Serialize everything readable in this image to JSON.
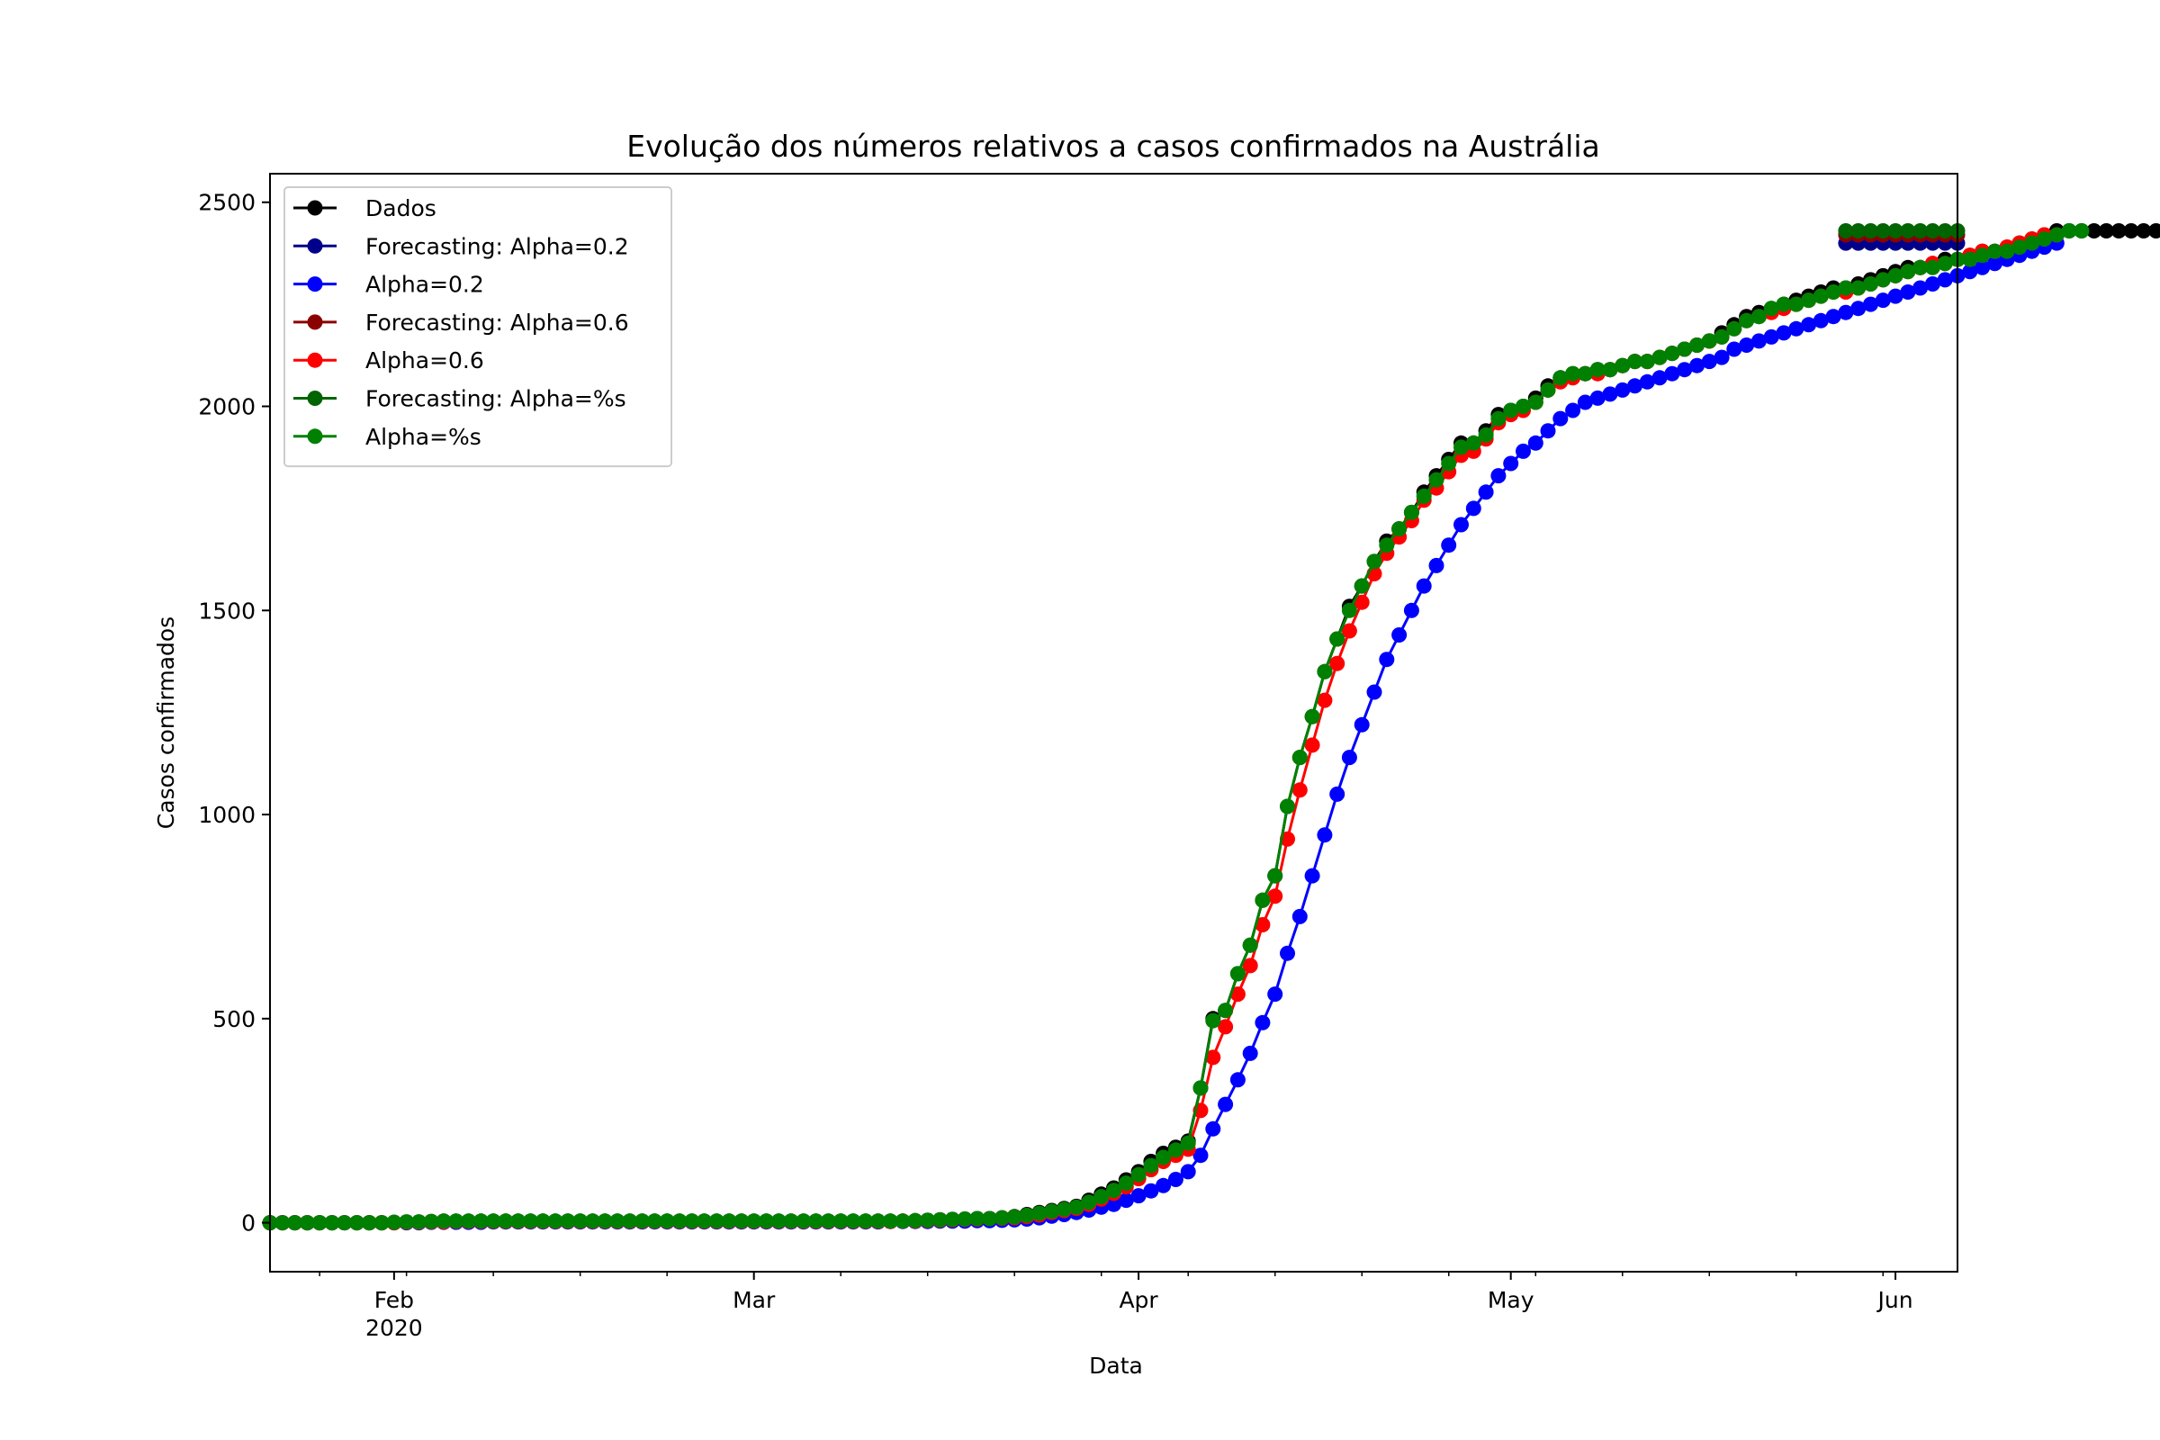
{
  "chart_data": {
    "type": "line",
    "title": "Evolução dos números relativos a casos confirmados na Austrália",
    "xlabel": "Data",
    "ylabel": "Casos confirmados",
    "x_range": [
      "2020-01-22",
      "2020-06-06"
    ],
    "ylim": [
      -120,
      2570
    ],
    "yticks": [
      0,
      500,
      1000,
      1500,
      2000,
      2500
    ],
    "xtick_labels": [
      {
        "date": "2020-02-01",
        "label": "Feb",
        "sublabel": "2020"
      },
      {
        "date": "2020-03-01",
        "label": "Mar",
        "sublabel": ""
      },
      {
        "date": "2020-04-01",
        "label": "Apr",
        "sublabel": ""
      },
      {
        "date": "2020-05-01",
        "label": "May",
        "sublabel": ""
      },
      {
        "date": "2020-06-01",
        "label": "Jun",
        "sublabel": ""
      }
    ],
    "grid": false,
    "legend_position": "upper-left",
    "series": [
      {
        "name": "Dados",
        "color": "#000000",
        "start_date": "2020-01-22",
        "values": [
          0,
          0,
          0,
          0,
          0,
          0,
          0,
          0,
          0,
          0,
          1,
          2,
          2,
          3,
          4,
          4,
          4,
          4,
          4,
          4,
          4,
          4,
          4,
          4,
          4,
          4,
          4,
          4,
          4,
          4,
          4,
          4,
          4,
          4,
          4,
          4,
          4,
          4,
          4,
          4,
          4,
          4,
          4,
          4,
          4,
          4,
          4,
          4,
          4,
          4,
          4,
          4,
          5,
          6,
          7,
          8,
          9,
          10,
          10,
          12,
          15,
          20,
          25,
          30,
          35,
          40,
          55,
          70,
          85,
          105,
          125,
          150,
          170,
          185,
          200,
          330,
          500,
          520,
          610,
          680,
          790,
          850,
          1020,
          1140,
          1240,
          1350,
          1430,
          1510,
          1560,
          1620,
          1670,
          1700,
          1740,
          1790,
          1830,
          1870,
          1910,
          1910,
          1940,
          1980,
          1990,
          2000,
          2020,
          2050,
          2070,
          2080,
          2080,
          2090,
          2090,
          2100,
          2110,
          2110,
          2120,
          2130,
          2140,
          2150,
          2160,
          2180,
          2200,
          2220,
          2230,
          2240,
          2250,
          2260,
          2270,
          2280,
          2290,
          2290,
          2300,
          2310,
          2320,
          2330,
          2340,
          2340,
          2350,
          2360,
          2360,
          2370,
          2380,
          2380,
          2390,
          2400,
          2410,
          2420,
          2430,
          2430,
          2430,
          2430,
          2430,
          2430,
          2430,
          2430,
          2430,
          2430,
          2430
        ]
      },
      {
        "name": "Forecasting: Alpha=0.2",
        "color": "#00008b",
        "start_date": "2020-05-28",
        "values": [
          2400,
          2400,
          2400,
          2400,
          2400,
          2400,
          2400,
          2400,
          2400,
          2400
        ]
      },
      {
        "name": "Alpha=0.2",
        "color": "#0000ff",
        "start_date": "2020-01-22",
        "values": [
          0,
          0,
          0,
          0,
          0,
          0,
          0,
          0,
          0,
          0,
          0,
          0,
          0,
          1,
          1,
          1,
          1,
          1,
          2,
          2,
          2,
          2,
          2,
          2,
          2,
          2,
          2,
          2,
          2,
          2,
          2,
          2,
          2,
          2,
          2,
          2,
          2,
          2,
          2,
          2,
          2,
          2,
          2,
          2,
          2,
          2,
          2,
          2,
          2,
          2,
          3,
          3,
          3,
          3,
          4,
          4,
          4,
          5,
          5,
          6,
          7,
          9,
          12,
          16,
          20,
          25,
          31,
          38,
          45,
          55,
          66,
          78,
          91,
          106,
          125,
          165,
          230,
          290,
          350,
          415,
          490,
          560,
          660,
          750,
          850,
          950,
          1050,
          1140,
          1220,
          1300,
          1380,
          1440,
          1500,
          1560,
          1610,
          1660,
          1710,
          1750,
          1790,
          1830,
          1860,
          1890,
          1910,
          1940,
          1970,
          1990,
          2010,
          2020,
          2030,
          2040,
          2050,
          2060,
          2070,
          2080,
          2090,
          2100,
          2110,
          2120,
          2140,
          2150,
          2160,
          2170,
          2180,
          2190,
          2200,
          2210,
          2220,
          2230,
          2240,
          2250,
          2260,
          2270,
          2280,
          2290,
          2300,
          2310,
          2320,
          2330,
          2340,
          2350,
          2360,
          2370,
          2380,
          2390,
          2400
        ]
      },
      {
        "name": "Forecasting: Alpha=0.6",
        "color": "#8b0000",
        "start_date": "2020-05-28",
        "values": [
          2420,
          2420,
          2420,
          2420,
          2420,
          2420,
          2420,
          2420,
          2420,
          2420
        ]
      },
      {
        "name": "Alpha=0.6",
        "color": "#ff0000",
        "start_date": "2020-01-22",
        "values": [
          0,
          0,
          0,
          0,
          0,
          0,
          0,
          0,
          0,
          0,
          0,
          1,
          1,
          2,
          2,
          3,
          3,
          3,
          3,
          3,
          3,
          3,
          3,
          3,
          3,
          3,
          3,
          3,
          3,
          3,
          3,
          3,
          3,
          3,
          3,
          3,
          3,
          3,
          3,
          3,
          3,
          3,
          3,
          3,
          3,
          3,
          3,
          3,
          3,
          3,
          3,
          4,
          4,
          5,
          6,
          7,
          8,
          9,
          10,
          11,
          12,
          15,
          19,
          25,
          30,
          35,
          45,
          58,
          72,
          88,
          108,
          130,
          150,
          165,
          180,
          275,
          405,
          480,
          560,
          630,
          730,
          800,
          940,
          1060,
          1170,
          1280,
          1370,
          1450,
          1520,
          1590,
          1640,
          1680,
          1720,
          1770,
          1800,
          1840,
          1880,
          1890,
          1920,
          1960,
          1980,
          1990,
          2010,
          2040,
          2060,
          2070,
          2080,
          2080,
          2090,
          2100,
          2110,
          2110,
          2120,
          2130,
          2140,
          2150,
          2160,
          2170,
          2190,
          2210,
          2220,
          2230,
          2240,
          2250,
          2260,
          2270,
          2280,
          2280,
          2290,
          2300,
          2310,
          2320,
          2330,
          2340,
          2350,
          2350,
          2360,
          2370,
          2380,
          2380,
          2390,
          2400,
          2410,
          2420,
          2420
        ]
      },
      {
        "name": "Forecasting: Alpha=%s",
        "color": "#006400",
        "start_date": "2020-05-28",
        "values": [
          2430,
          2430,
          2430,
          2430,
          2430,
          2430,
          2430,
          2430,
          2430,
          2430
        ]
      },
      {
        "name": "Alpha=%s",
        "color": "#008000",
        "start_date": "2020-01-22",
        "values": [
          0,
          0,
          0,
          0,
          0,
          0,
          0,
          0,
          0,
          0,
          1,
          2,
          2,
          3,
          4,
          4,
          4,
          4,
          4,
          4,
          4,
          4,
          4,
          4,
          4,
          4,
          4,
          4,
          4,
          4,
          4,
          4,
          4,
          4,
          4,
          4,
          4,
          4,
          4,
          4,
          4,
          4,
          4,
          4,
          4,
          4,
          4,
          4,
          4,
          4,
          4,
          4,
          5,
          6,
          7,
          8,
          9,
          10,
          10,
          12,
          14,
          18,
          23,
          28,
          33,
          38,
          50,
          64,
          79,
          97,
          118,
          140,
          160,
          178,
          195,
          330,
          495,
          520,
          610,
          680,
          790,
          850,
          1020,
          1140,
          1240,
          1350,
          1430,
          1500,
          1560,
          1620,
          1660,
          1700,
          1740,
          1780,
          1820,
          1860,
          1900,
          1910,
          1930,
          1970,
          1990,
          2000,
          2010,
          2040,
          2070,
          2080,
          2080,
          2090,
          2090,
          2100,
          2110,
          2110,
          2120,
          2130,
          2140,
          2150,
          2160,
          2170,
          2190,
          2210,
          2220,
          2240,
          2250,
          2250,
          2260,
          2270,
          2280,
          2290,
          2290,
          2300,
          2310,
          2320,
          2330,
          2340,
          2340,
          2350,
          2360,
          2360,
          2370,
          2380,
          2380,
          2390,
          2400,
          2410,
          2420,
          2430,
          2430
        ]
      }
    ]
  }
}
